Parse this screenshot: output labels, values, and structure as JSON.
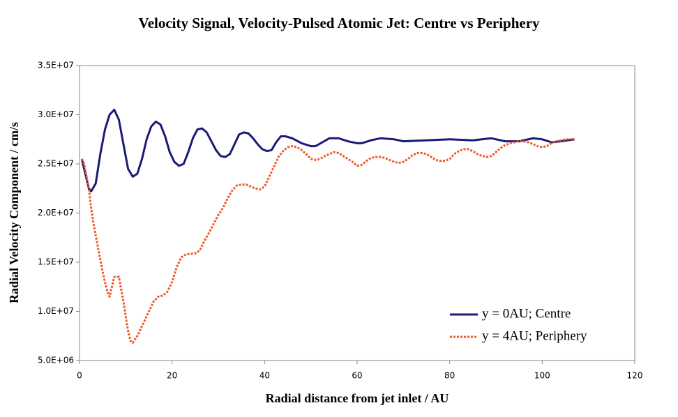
{
  "chart_data": {
    "type": "line",
    "title": "Velocity Signal, Velocity-Pulsed Atomic Jet: Centre vs Periphery",
    "x_label": "Radial distance from jet inlet / AU",
    "y_label": "Radial Velocity Component / cm/s",
    "xlim": [
      0,
      120
    ],
    "xticks": [
      0,
      20,
      40,
      60,
      80,
      100,
      120
    ],
    "ylim": [
      5000000,
      35000000
    ],
    "yticks": [
      {
        "value": 5000000,
        "label": "5.0E+06"
      },
      {
        "value": 10000000,
        "label": "1.0E+07"
      },
      {
        "value": 15000000,
        "label": "1.5E+07"
      },
      {
        "value": 20000000,
        "label": "2.0E+07"
      },
      {
        "value": 25000000,
        "label": "2.5E+07"
      },
      {
        "value": 30000000,
        "label": "3.0E+07"
      },
      {
        "value": 35000000,
        "label": "3.5E+07"
      }
    ],
    "grid": false,
    "legend": "lower right",
    "series": [
      {
        "name": "y = 0AU; Centre",
        "color": "#1a1a78",
        "dash": "solid",
        "x": [
          0.5,
          1,
          2,
          2.5,
          3.5,
          4.5,
          5.5,
          6.5,
          7.5,
          8.5,
          9.5,
          10.5,
          11.5,
          12.5,
          13.5,
          14.5,
          15.5,
          16.5,
          17.5,
          18.5,
          19.5,
          20.5,
          21.5,
          22.5,
          23.5,
          24.5,
          25.5,
          26.5,
          27.5,
          28.5,
          29.5,
          30.5,
          31.5,
          32.5,
          33.5,
          34.5,
          35.5,
          36.5,
          37.5,
          38.5,
          39.5,
          40.5,
          41.5,
          42.5,
          43.5,
          44.5,
          46,
          48,
          50,
          51,
          52.5,
          54,
          56,
          58,
          60,
          61,
          63,
          65,
          68,
          70,
          75,
          80,
          85,
          89,
          92,
          95,
          98,
          100,
          102,
          104,
          107
        ],
        "values": [
          25500000,
          24500000,
          22500000,
          22200000,
          23000000,
          26000000,
          28500000,
          30000000,
          30500000,
          29500000,
          27000000,
          24500000,
          23700000,
          24000000,
          25500000,
          27500000,
          28800000,
          29300000,
          29000000,
          27800000,
          26200000,
          25200000,
          24800000,
          25000000,
          26200000,
          27600000,
          28500000,
          28600000,
          28200000,
          27300000,
          26400000,
          25800000,
          25700000,
          26000000,
          27000000,
          28000000,
          28200000,
          28100000,
          27600000,
          27000000,
          26500000,
          26300000,
          26400000,
          27200000,
          27800000,
          27800000,
          27600000,
          27100000,
          26800000,
          26800000,
          27200000,
          27600000,
          27600000,
          27300000,
          27100000,
          27100000,
          27400000,
          27600000,
          27500000,
          27300000,
          27400000,
          27500000,
          27400000,
          27600000,
          27300000,
          27300000,
          27600000,
          27500000,
          27200000,
          27300000,
          27500000
        ]
      },
      {
        "name": "y = 4AU; Periphery",
        "color": "#f0582a",
        "dash": "dotted",
        "x": [
          0.5,
          1,
          2,
          2.5,
          3,
          4,
          5,
          6,
          6.5,
          7,
          7.5,
          8.5,
          9.5,
          10.5,
          11,
          11.5,
          12.5,
          14,
          15,
          16,
          17,
          18,
          19,
          20,
          21,
          22,
          23,
          25,
          26,
          27,
          28,
          30,
          31,
          32,
          33,
          34,
          35,
          36,
          37,
          38,
          39,
          40,
          41,
          42,
          43,
          44,
          45,
          46,
          47,
          48,
          49,
          50,
          51,
          52,
          53,
          54,
          55,
          56,
          57,
          58,
          59,
          60,
          61,
          62,
          63,
          64,
          65,
          66,
          67,
          68,
          69,
          70,
          71,
          72,
          73,
          74,
          75,
          76,
          77,
          78,
          79,
          80,
          81,
          82,
          83,
          84,
          85,
          86,
          87,
          88,
          89,
          90,
          91,
          92,
          93,
          94,
          95,
          96,
          97,
          98,
          99,
          100,
          101,
          102,
          103,
          104,
          105,
          107
        ],
        "values": [
          25500000,
          25000000,
          22500000,
          20500000,
          19000000,
          16500000,
          14000000,
          12000000,
          11500000,
          12500000,
          13500000,
          13500000,
          11000000,
          8000000,
          7000000,
          6800000,
          7500000,
          9000000,
          10000000,
          11000000,
          11500000,
          11600000,
          12000000,
          13000000,
          14500000,
          15500000,
          15800000,
          15900000,
          16200000,
          17200000,
          18000000,
          19800000,
          20500000,
          21500000,
          22300000,
          22800000,
          22900000,
          22900000,
          22700000,
          22500000,
          22400000,
          22700000,
          23700000,
          24700000,
          25700000,
          26300000,
          26700000,
          26800000,
          26700000,
          26400000,
          26000000,
          25500000,
          25400000,
          25500000,
          25800000,
          26000000,
          26200000,
          26100000,
          25800000,
          25500000,
          25200000,
          24800000,
          24900000,
          25300000,
          25600000,
          25700000,
          25700000,
          25600000,
          25400000,
          25200000,
          25100000,
          25200000,
          25500000,
          25900000,
          26100000,
          26100000,
          26000000,
          25700000,
          25400000,
          25300000,
          25300000,
          25500000,
          26000000,
          26300000,
          26500000,
          26500000,
          26300000,
          26000000,
          25800000,
          25700000,
          25800000,
          26200000,
          26600000,
          26900000,
          27100000,
          27200000,
          27300000,
          27300000,
          27200000,
          27000000,
          26800000,
          26700000,
          26800000,
          27100000,
          27300000,
          27400000,
          27500000,
          27500000
        ]
      }
    ]
  }
}
